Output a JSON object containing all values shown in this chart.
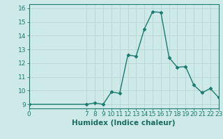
{
  "x": [
    0,
    7,
    8,
    9,
    10,
    11,
    12,
    13,
    14,
    15,
    16,
    17,
    18,
    19,
    20,
    21,
    22,
    23
  ],
  "y": [
    9.0,
    9.0,
    9.1,
    9.0,
    9.9,
    9.8,
    12.6,
    12.5,
    14.5,
    15.75,
    15.7,
    12.4,
    11.7,
    11.75,
    10.4,
    9.85,
    10.15,
    9.5
  ],
  "xlabel": "Humidex (Indice chaleur)",
  "xlim": [
    0,
    23
  ],
  "ylim": [
    8.7,
    16.3
  ],
  "yticks": [
    9,
    10,
    11,
    12,
    13,
    14,
    15,
    16
  ],
  "xticks": [
    0,
    7,
    8,
    9,
    10,
    11,
    12,
    13,
    14,
    15,
    16,
    17,
    18,
    19,
    20,
    21,
    22,
    23
  ],
  "line_color": "#1a7a6e",
  "marker_color": "#1a7a6e",
  "bg_color": "#ceeae8",
  "grid_color": "#b8d5d2",
  "axis_color": "#1a7a6e",
  "text_color": "#1a6b5f",
  "tick_fontsize": 6.5,
  "xlabel_fontsize": 7.5,
  "marker_size": 2.5,
  "linewidth": 1.0
}
